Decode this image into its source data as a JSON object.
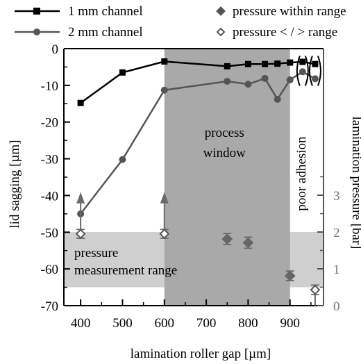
{
  "chart_data": {
    "type": "line",
    "xlabel": "lamination roller gap [µm]",
    "ylabel": "lid sagging [µm]",
    "y2label": "lamination pressure [bar]",
    "xlim": [
      360,
      980
    ],
    "ylim": [
      -70,
      0
    ],
    "y2lim": [
      0,
      4
    ],
    "x_ticks": [
      400,
      500,
      600,
      700,
      800,
      900
    ],
    "y_ticks": [
      0,
      -10,
      -20,
      -30,
      -40,
      -50,
      -60,
      -70
    ],
    "y2_ticks": [
      0,
      1,
      2,
      3
    ],
    "legend": {
      "position": "top",
      "entries": [
        {
          "label": "1 mm channel",
          "marker": "square",
          "color": "#000000"
        },
        {
          "label": "pressure within range",
          "marker": "diamond-filled",
          "color": "#555555"
        },
        {
          "label": "2 mm channel",
          "marker": "circle",
          "color": "#555555"
        },
        {
          "label": "pressure < / > range",
          "marker": "diamond-open",
          "color": "#555555"
        }
      ]
    },
    "series": [
      {
        "name": "1 mm channel",
        "color": "#000000",
        "marker": "square",
        "x": [
          400,
          500,
          600,
          750,
          800,
          840,
          870,
          900,
          930,
          960
        ],
        "y": [
          -14.8,
          -6.5,
          -3.5,
          -4.8,
          -4.2,
          -4.2,
          -4.1,
          -3.8,
          -3.6,
          -4.2
        ]
      },
      {
        "name": "2 mm channel",
        "color": "#555555",
        "marker": "circle",
        "x": [
          400,
          500,
          600,
          750,
          800,
          840,
          870,
          900,
          930,
          960
        ],
        "y": [
          -45,
          -30.2,
          -11.3,
          -8.9,
          -9.7,
          -8.1,
          -13.8,
          -8.5,
          -6.3,
          -8.2
        ]
      }
    ],
    "pressure_points": [
      {
        "x": 400,
        "y": 1.95,
        "err": 0.12,
        "state": "outside",
        "arrow_to": 3.08
      },
      {
        "x": 600,
        "y": 1.95,
        "err": 0.12,
        "state": "outside",
        "arrow_to": 3.08
      },
      {
        "x": 750,
        "y": 1.81,
        "err": 0.15,
        "state": "within"
      },
      {
        "x": 800,
        "y": 1.71,
        "err": 0.15,
        "state": "within"
      },
      {
        "x": 900,
        "y": 0.81,
        "err": 0.13,
        "state": "outside-error"
      },
      {
        "x": 960,
        "y": 0.43,
        "err": 0.13,
        "state": "outside",
        "arrow_to": 0
      }
    ],
    "bracketed_points_x": [
      930,
      960
    ],
    "process_window": {
      "x_range": [
        600,
        900
      ],
      "label": "process\nwindow",
      "color": "#a9a9a9"
    },
    "measurement_range": {
      "y2_range": [
        0.5,
        2
      ],
      "label": "pressure\nmeasurement range",
      "color": "#cfcfcf"
    },
    "vertical_annotation": "poor adhesion"
  }
}
